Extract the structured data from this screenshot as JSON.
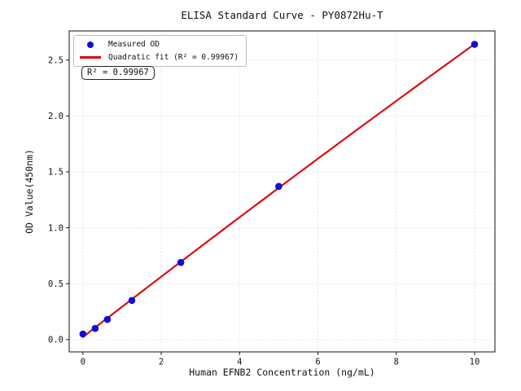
{
  "chart_data": {
    "type": "scatter",
    "title": "ELISA Standard Curve - PY0872Hu-T",
    "xlabel": "Human EFNB2 Concentration (ng/mL)",
    "ylabel": "OD Value(450nm)",
    "xlim": [
      -0.35,
      10.52
    ],
    "ylim": [
      -0.11,
      2.76
    ],
    "x_ticks": [
      0,
      2,
      4,
      6,
      8,
      10
    ],
    "x_tick_labels": [
      "0",
      "2",
      "4",
      "6",
      "8",
      "10"
    ],
    "y_ticks": [
      0.0,
      0.5,
      1.0,
      1.5,
      2.0,
      2.5
    ],
    "y_tick_labels": [
      "0.0",
      "0.5",
      "1.0",
      "1.5",
      "2.0",
      "2.5"
    ],
    "grid": true,
    "legend_position": "upper left",
    "series": [
      {
        "name": "Measured OD",
        "type": "scatter",
        "color": "#0d0dd8",
        "x": [
          0,
          0.313,
          0.625,
          1.25,
          2.5,
          5,
          10
        ],
        "y": [
          0.05,
          0.1,
          0.18,
          0.35,
          0.69,
          1.37,
          2.64
        ]
      },
      {
        "name": "Quadratic fit (R² = 0.99967)",
        "type": "line",
        "color": "#e00000",
        "fit": "quadratic",
        "fit_of_series": 0,
        "x_range": [
          0,
          10
        ],
        "r_squared": "0.99967"
      }
    ],
    "annotation": "R² = 0.99967"
  },
  "legend": {
    "items": [
      {
        "label": "Measured OD",
        "marker": "dot",
        "color": "#0d0dd8"
      },
      {
        "label": "Quadratic fit (R² = 0.99967)",
        "marker": "line",
        "color": "#e00000"
      }
    ]
  },
  "annotation_box": {
    "text": "R² = 0.99967"
  },
  "colors": {
    "points": "#0d0dd8",
    "fit_line": "#e00000",
    "grid": "#d9d9d9",
    "spine": "#262626",
    "background": "#ffffff"
  }
}
